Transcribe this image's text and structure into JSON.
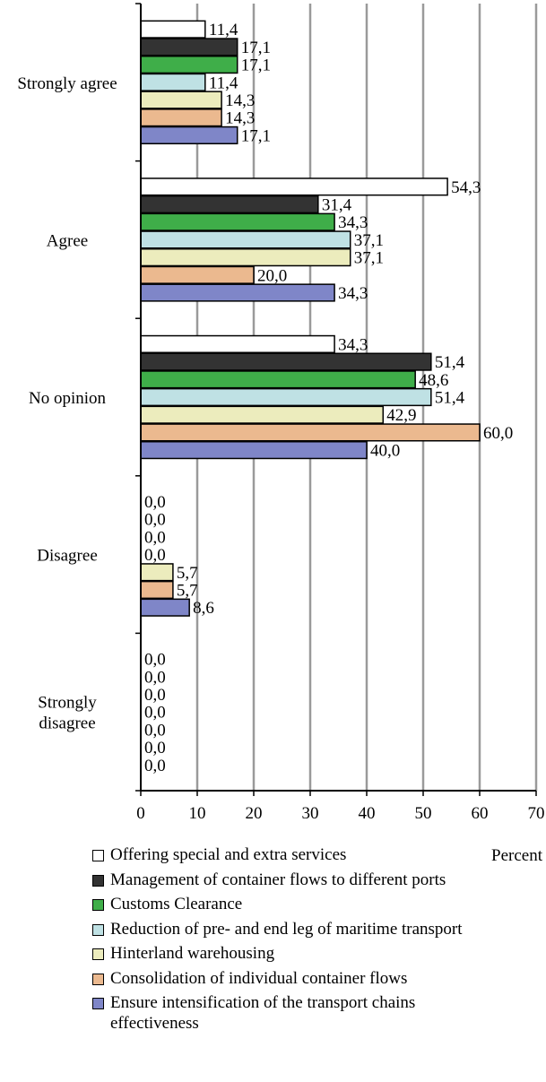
{
  "chart_data": {
    "type": "bar",
    "orientation": "horizontal",
    "categories": [
      "Strongly agree",
      "Agree",
      "No opinion",
      "Disagree",
      "Strongly disagree"
    ],
    "category_lines": [
      [
        "Strongly agree"
      ],
      [
        "Agree"
      ],
      [
        "No opinion"
      ],
      [
        "Disagree"
      ],
      [
        "Strongly",
        "disagree"
      ]
    ],
    "series": [
      {
        "name": "Offering special and extra services",
        "color": "#ffffff",
        "values": [
          11.4,
          54.3,
          34.3,
          0.0,
          0.0
        ],
        "labels": [
          "11,4",
          "54,3",
          "34,3",
          "0,0",
          "0,0"
        ]
      },
      {
        "name": "Management of container flows to different ports",
        "color": "#333333",
        "values": [
          17.1,
          31.4,
          51.4,
          0.0,
          0.0
        ],
        "labels": [
          "17,1",
          "31,4",
          "51,4",
          "0,0",
          "0,0"
        ]
      },
      {
        "name": "Customs Clearance",
        "color": "#3fae49",
        "values": [
          17.1,
          34.3,
          48.6,
          0.0,
          0.0
        ],
        "labels": [
          "17,1",
          "34,3",
          "48,6",
          "0,0",
          "0,0"
        ]
      },
      {
        "name": "Reduction of pre- and end leg of maritime transport",
        "color": "#bfe1e4",
        "values": [
          11.4,
          37.1,
          51.4,
          0.0,
          0.0
        ],
        "labels": [
          "11,4",
          "37,1",
          "51,4",
          "0,0",
          "0,0"
        ]
      },
      {
        "name": "Hinterland warehousing",
        "color": "#ececbd",
        "values": [
          14.3,
          37.1,
          42.9,
          5.7,
          0.0
        ],
        "labels": [
          "14,3",
          "37,1",
          "42,9",
          "5,7",
          "0,0"
        ]
      },
      {
        "name": "Consolidation of individual container flows",
        "color": "#ebb98f",
        "values": [
          14.3,
          20.0,
          60.0,
          5.7,
          0.0
        ],
        "labels": [
          "14,3",
          "20,0",
          "60,0",
          "5,7",
          "0,0"
        ]
      },
      {
        "name": "Ensure intensification of the transport chains effectiveness",
        "color": "#7f86c8",
        "values": [
          17.1,
          34.3,
          40.0,
          8.6,
          0.0
        ],
        "labels": [
          "17,1",
          "34,3",
          "40,0",
          "8,6",
          "0,0"
        ]
      }
    ],
    "xlim": [
      0,
      70
    ],
    "x_ticks": [
      "0",
      "10",
      "20",
      "30",
      "40",
      "50",
      "60",
      "70"
    ],
    "xlabel": "Percent",
    "ylabel": "",
    "grid": "vertical",
    "legend_position": "bottom"
  },
  "legend": {
    "items": [
      {
        "lines": [
          "Offering special and extra services"
        ]
      },
      {
        "lines": [
          "Management of container flows to different ports"
        ]
      },
      {
        "lines": [
          "Customs Clearance"
        ]
      },
      {
        "lines": [
          "Reduction of pre- and end leg of maritime transport"
        ]
      },
      {
        "lines": [
          "Hinterland warehousing"
        ]
      },
      {
        "lines": [
          "Consolidation of individual container flows"
        ]
      },
      {
        "lines": [
          "Ensure intensification of the transport chains",
          "effectiveness"
        ]
      }
    ]
  }
}
